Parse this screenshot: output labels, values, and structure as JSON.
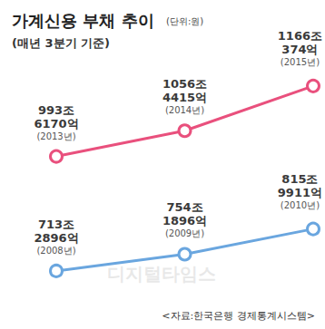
{
  "chart_data": {
    "type": "line",
    "title": "가계신용 부채 추이",
    "unit": "(단위:원)",
    "subtitle": "(매년 3분기 기준)",
    "source": "<자료:한국은행 경제통계시스템>",
    "watermark": "디지털타임스",
    "ylim": [
      600,
      1250
    ],
    "tick_labels": false,
    "grid": false,
    "data_labels": true,
    "series": [
      {
        "categories": [
          "(2013년)",
          "(2014년)",
          "(2015년)"
        ],
        "values": [
          993.617,
          1056.4415,
          1166.0374
        ],
        "value_labels": [
          "993조\n6170억",
          "1056조\n4415억",
          "1166조\n374억"
        ],
        "color": "#e9507d",
        "marker": "circle"
      },
      {
        "categories": [
          "(2008년)",
          "(2009년)",
          "(2010년)"
        ],
        "values": [
          713.2896,
          754.1896,
          815.9911
        ],
        "value_labels": [
          "713조\n2896억",
          "754조\n1896억",
          "815조\n9911억"
        ],
        "color": "#6aa6df",
        "marker": "circle"
      }
    ]
  }
}
